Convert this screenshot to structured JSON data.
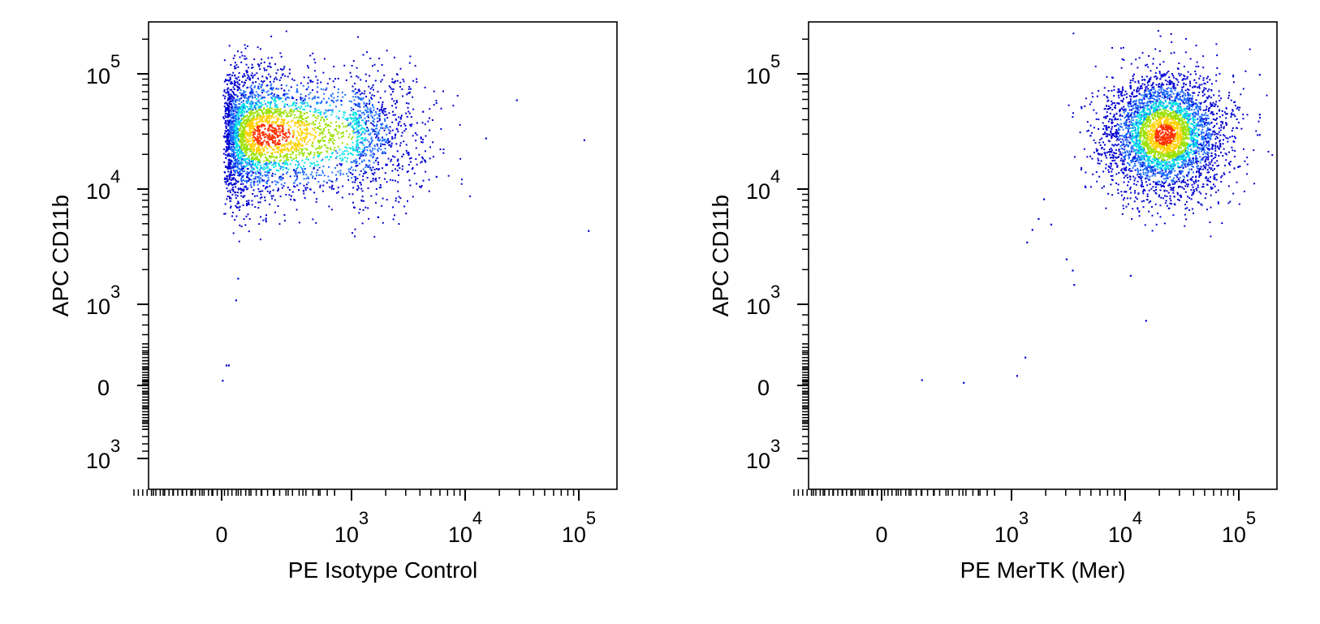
{
  "chart_data": [
    {
      "type": "scatter",
      "plot_style": "flow-cytometry-density-dot-plot",
      "xlabel": "PE Isotype Control",
      "ylabel": "APC  CD11b",
      "x_scale": "biexponential",
      "y_scale": "biexponential",
      "xlim": [
        -1000,
        150000
      ],
      "ylim": [
        -1400,
        200000
      ],
      "x_ticks": [
        {
          "value": 0,
          "base": "0",
          "exp": ""
        },
        {
          "value": 1000,
          "base": "10",
          "exp": "3"
        },
        {
          "value": 10000,
          "base": "10",
          "exp": "4"
        },
        {
          "value": 100000,
          "base": "10",
          "exp": "5"
        }
      ],
      "y_ticks": [
        {
          "value": -1000,
          "base": "10",
          "exp": "3"
        },
        {
          "value": 0,
          "base": "0",
          "exp": ""
        },
        {
          "value": 1000,
          "base": "10",
          "exp": "3"
        },
        {
          "value": 10000,
          "base": "10",
          "exp": "4"
        },
        {
          "value": 100000,
          "base": "10",
          "exp": "5"
        }
      ],
      "population": {
        "center_x": 450,
        "center_y": 30000,
        "spread_x": 0.42,
        "spread_y": 0.28,
        "count": 3800,
        "seed": 7
      },
      "outliers": [
        {
          "x": 5,
          "y": 120
        },
        {
          "x": 60,
          "y": 350
        },
        {
          "x": 90,
          "y": 350
        },
        {
          "x": 170,
          "y": 1100
        },
        {
          "x": 190,
          "y": 1700
        },
        {
          "x": 5500,
          "y": 13000
        },
        {
          "x": 15000,
          "y": 28000
        },
        {
          "x": 28000,
          "y": 60000
        },
        {
          "x": 110000,
          "y": 27000
        },
        {
          "x": 120000,
          "y": 4400
        }
      ],
      "density_colors": [
        "#0000d0",
        "#1e6fff",
        "#00e5e5",
        "#9be000",
        "#ffd000",
        "#ff3000"
      ]
    },
    {
      "type": "scatter",
      "plot_style": "flow-cytometry-density-dot-plot",
      "xlabel": "PE MerTK (Mer)",
      "ylabel": "APC  CD11b",
      "x_scale": "biexponential",
      "y_scale": "biexponential",
      "xlim": [
        -1000,
        150000
      ],
      "ylim": [
        -1400,
        200000
      ],
      "x_ticks": [
        {
          "value": 0,
          "base": "0",
          "exp": ""
        },
        {
          "value": 1000,
          "base": "10",
          "exp": "3"
        },
        {
          "value": 10000,
          "base": "10",
          "exp": "4"
        },
        {
          "value": 100000,
          "base": "10",
          "exp": "5"
        }
      ],
      "y_ticks": [
        {
          "value": -1000,
          "base": "10",
          "exp": "3"
        },
        {
          "value": 0,
          "base": "0",
          "exp": ""
        },
        {
          "value": 1000,
          "base": "10",
          "exp": "3"
        },
        {
          "value": 10000,
          "base": "10",
          "exp": "4"
        },
        {
          "value": 100000,
          "base": "10",
          "exp": "5"
        }
      ],
      "population": {
        "center_x": 22000,
        "center_y": 30000,
        "spread_x": 0.26,
        "spread_y": 0.26,
        "count": 3800,
        "seed": 11
      },
      "outliers": [
        {
          "x": 400,
          "y": 130
        },
        {
          "x": 700,
          "y": 80
        },
        {
          "x": 1100,
          "y": 200
        },
        {
          "x": 1300,
          "y": 450
        },
        {
          "x": 1350,
          "y": 3500
        },
        {
          "x": 1500,
          "y": 4500
        },
        {
          "x": 1700,
          "y": 5600
        },
        {
          "x": 2200,
          "y": 5000
        },
        {
          "x": 1900,
          "y": 8300
        },
        {
          "x": 3000,
          "y": 2500
        },
        {
          "x": 3500,
          "y": 1500
        },
        {
          "x": 3400,
          "y": 2000
        },
        {
          "x": 11000,
          "y": 1800
        },
        {
          "x": 15000,
          "y": 850
        },
        {
          "x": 50000,
          "y": 28000
        },
        {
          "x": 150000,
          "y": 100000
        },
        {
          "x": 150000,
          "y": 45000
        },
        {
          "x": 150000,
          "y": 30000
        }
      ],
      "density_colors": [
        "#0000d0",
        "#1e6fff",
        "#00e5e5",
        "#9be000",
        "#ffd000",
        "#ff3000"
      ]
    }
  ]
}
